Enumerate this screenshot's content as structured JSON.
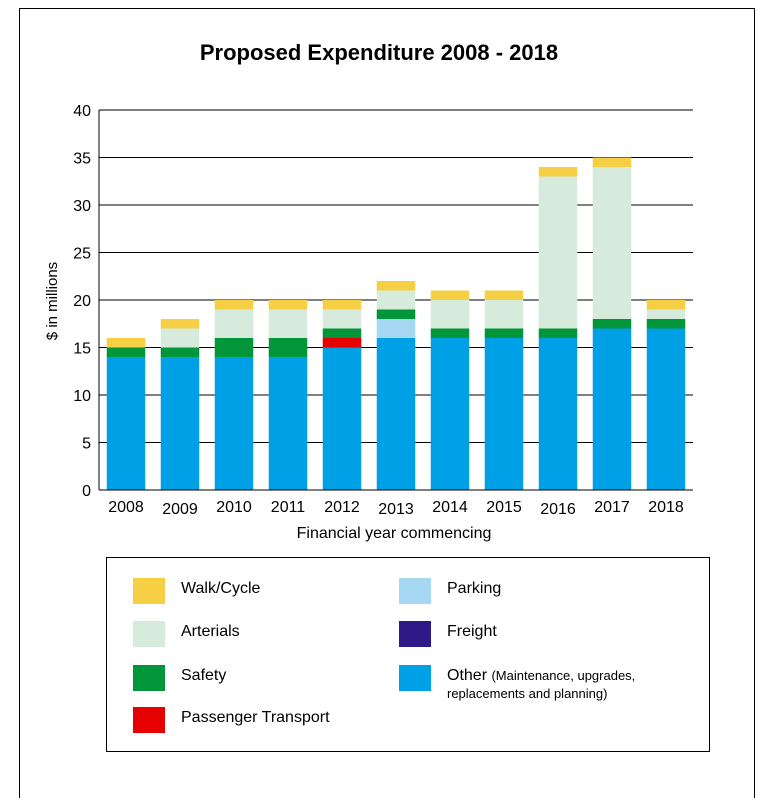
{
  "chart_data": {
    "type": "bar",
    "stacked": true,
    "title": "Proposed Expenditure 2008 - 2018",
    "xlabel": "Financial year commencing",
    "ylabel": "$ in millions",
    "ylim": [
      0,
      40
    ],
    "yticks": [
      "0",
      "5",
      "10",
      "15",
      "20",
      "25",
      "30",
      "35",
      "40"
    ],
    "ytick_values": [
      0,
      5,
      10,
      15,
      20,
      25,
      30,
      35,
      40
    ],
    "grid": true,
    "legend_placement": "bottom",
    "categories": [
      "2008",
      "2009",
      "2010",
      "2011",
      "2012",
      "2013",
      "2014",
      "2015",
      "2016",
      "2017",
      "2018"
    ],
    "series": [
      {
        "name": "Other",
        "color": "#00a0e6",
        "values": [
          14,
          14,
          14,
          14,
          15,
          16,
          16,
          16,
          16,
          17,
          17
        ]
      },
      {
        "name": "Freight",
        "color": "#2e1a87",
        "values": [
          0,
          0,
          0,
          0,
          0,
          0,
          0,
          0,
          0,
          0,
          0
        ]
      },
      {
        "name": "Passenger Transport",
        "color": "#e60000",
        "values": [
          0,
          0,
          0,
          0,
          1,
          0,
          0,
          0,
          0,
          0,
          0
        ]
      },
      {
        "name": "Parking",
        "color": "#a6d8f4",
        "values": [
          0,
          0,
          0,
          0,
          0,
          2,
          0,
          0,
          0,
          0,
          0
        ]
      },
      {
        "name": "Safety",
        "color": "#009639",
        "values": [
          1,
          1,
          2,
          2,
          1,
          1,
          1,
          1,
          1,
          1,
          1
        ]
      },
      {
        "name": "Arterials",
        "color": "#d6ebdc",
        "values": [
          0,
          2,
          3,
          3,
          2,
          2,
          3,
          3,
          16,
          16,
          1
        ]
      },
      {
        "name": "Walk/Cycle",
        "color": "#f6cf45",
        "values": [
          1,
          1,
          1,
          1,
          1,
          1,
          1,
          1,
          1,
          1,
          1
        ]
      }
    ]
  },
  "legend": {
    "items": [
      {
        "label": "Walk/Cycle",
        "note": "",
        "color": "#f6cf45"
      },
      {
        "label": "Arterials",
        "note": "",
        "color": "#d6ebdc"
      },
      {
        "label": "Safety",
        "note": "",
        "color": "#009639"
      },
      {
        "label": "Passenger Transport",
        "note": "",
        "color": "#e60000"
      },
      {
        "label": "Parking",
        "note": "",
        "color": "#a6d8f4"
      },
      {
        "label": "Freight",
        "note": "",
        "color": "#2e1a87"
      },
      {
        "label": "Other",
        "note": "(Maintenance, upgrades,",
        "note2": "replacements and planning)",
        "color": "#00a0e6"
      }
    ]
  }
}
